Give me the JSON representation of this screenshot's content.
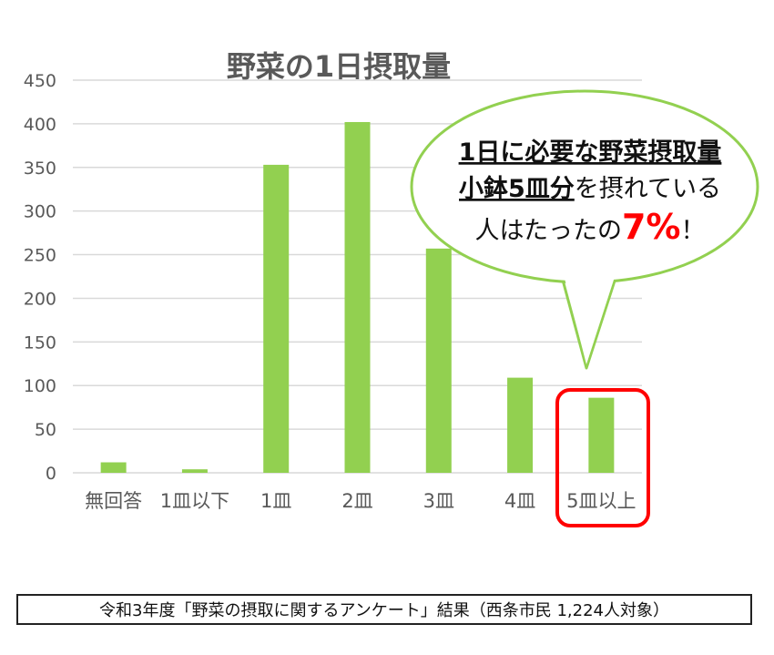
{
  "chart_data": {
    "type": "bar",
    "title": "野菜の1日摂取量",
    "categories": [
      "無回答",
      "1皿以下",
      "1皿",
      "2皿",
      "3皿",
      "4皿",
      "5皿以上"
    ],
    "values": [
      12,
      4,
      353,
      402,
      257,
      109,
      86
    ],
    "ylim": [
      0,
      450
    ],
    "yticks": [
      0,
      50,
      100,
      150,
      200,
      250,
      300,
      350,
      400,
      450
    ],
    "grid": true,
    "bar_color": "#92d050",
    "highlight_category": "5皿以上",
    "highlight_color": "#ff0000"
  },
  "callout": {
    "line1": "1日に必要な野菜摂取量",
    "line2_bold": "小鉢5皿分",
    "line2_rest": "を摂れている",
    "line3_pre": "人はたったの",
    "line3_pct": "7%",
    "line3_post": "！",
    "border_color": "#92d050",
    "accent_color": "#ff0000"
  },
  "footer": {
    "text": "令和3年度「野菜の摂取に関するアンケート」結果（西条市民 1,224人対象）"
  }
}
